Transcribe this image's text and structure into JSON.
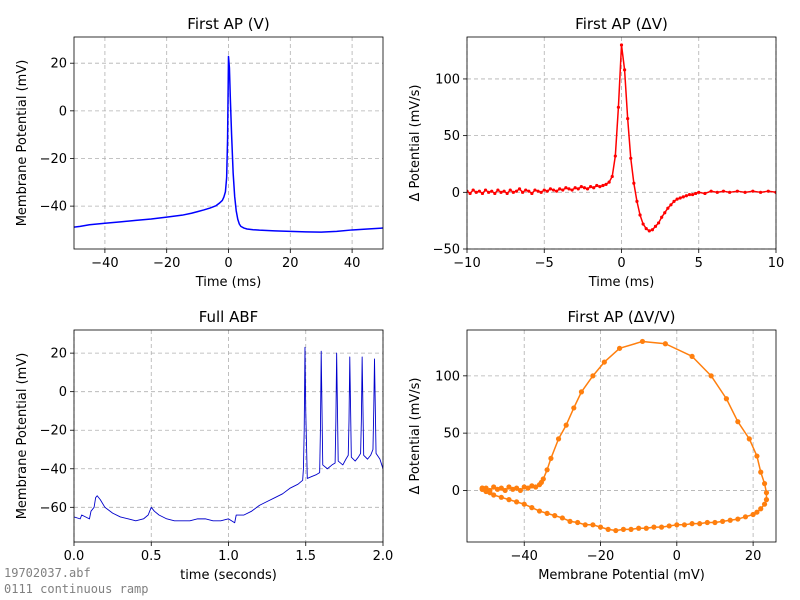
{
  "footer": {
    "filename": "19702037.abf",
    "protocol": "0111 continuous ramp"
  },
  "colors": {
    "blue": "#0000ff",
    "darkblue": "#0000cc",
    "red": "#ff0000",
    "orange": "#ff7f0e",
    "grid": "#b0b0b0"
  },
  "chart_data": [
    {
      "id": "first-ap-v",
      "type": "line",
      "title": "First AP (V)",
      "xlabel": "Time (ms)",
      "ylabel": "Membrane Potential (mV)",
      "xlim": [
        -50,
        50
      ],
      "ylim": [
        -58,
        31
      ],
      "xticks": [
        -40,
        -20,
        0,
        20,
        40
      ],
      "yticks": [
        -40,
        -20,
        0,
        20
      ],
      "grid": true,
      "series": [
        {
          "color": "#0000ff",
          "markers": false,
          "x": [
            -50,
            -48,
            -45,
            -40,
            -35,
            -30,
            -25,
            -20,
            -15,
            -12,
            -10,
            -8,
            -6,
            -4,
            -3,
            -2,
            -1.5,
            -1,
            -0.6,
            -0.3,
            0,
            0.3,
            0.6,
            1,
            1.5,
            2,
            2.5,
            3,
            3.5,
            4,
            5,
            6,
            8,
            10,
            15,
            20,
            25,
            30,
            35,
            40,
            45,
            50
          ],
          "y": [
            -48.8,
            -48.5,
            -47.8,
            -47.2,
            -46.6,
            -46.0,
            -45.4,
            -44.6,
            -43.8,
            -43.0,
            -42.3,
            -41.6,
            -40.8,
            -39.8,
            -38.8,
            -37.6,
            -36.2,
            -34.0,
            -28,
            -12,
            22.8,
            18,
            5,
            -10,
            -26,
            -36,
            -42,
            -45.5,
            -47.5,
            -48.5,
            -49.2,
            -49.6,
            -49.9,
            -50.1,
            -50.4,
            -50.6,
            -50.8,
            -50.9,
            -50.6,
            -50.0,
            -49.6,
            -49.2
          ]
        }
      ]
    },
    {
      "id": "first-ap-dv",
      "type": "line",
      "title": "First AP (ΔV)",
      "xlabel": "Time (ms)",
      "ylabel": "Δ Potential (mV/s)",
      "xlim": [
        -10,
        10
      ],
      "ylim": [
        -50,
        137
      ],
      "xticks": [
        -10,
        -5,
        0,
        5,
        10
      ],
      "yticks": [
        -50,
        0,
        50,
        100
      ],
      "grid": true,
      "series": [
        {
          "color": "#ff0000",
          "markers": true,
          "x": [
            -10,
            -9.8,
            -9.6,
            -9.4,
            -9.2,
            -9.0,
            -8.8,
            -8.6,
            -8.4,
            -8.2,
            -8.0,
            -7.8,
            -7.6,
            -7.4,
            -7.2,
            -7.0,
            -6.8,
            -6.6,
            -6.4,
            -6.2,
            -6.0,
            -5.8,
            -5.6,
            -5.4,
            -5.2,
            -5.0,
            -4.8,
            -4.6,
            -4.4,
            -4.2,
            -4.0,
            -3.8,
            -3.6,
            -3.4,
            -3.2,
            -3.0,
            -2.8,
            -2.6,
            -2.4,
            -2.2,
            -2.0,
            -1.8,
            -1.6,
            -1.4,
            -1.2,
            -1.0,
            -0.8,
            -0.6,
            -0.4,
            -0.2,
            0.0,
            0.2,
            0.4,
            0.6,
            0.8,
            1.0,
            1.2,
            1.4,
            1.6,
            1.8,
            2.0,
            2.2,
            2.4,
            2.6,
            2.8,
            3.0,
            3.2,
            3.4,
            3.6,
            3.8,
            4.0,
            4.2,
            4.4,
            4.6,
            4.8,
            5.0,
            5.4,
            5.8,
            6.2,
            6.6,
            7.0,
            7.5,
            8.0,
            8.5,
            9.0,
            9.5,
            10.0
          ],
          "y": [
            1,
            -1,
            2,
            0,
            1,
            -1,
            2,
            0,
            1,
            -1,
            2,
            0,
            1,
            -1,
            2,
            0,
            1,
            3,
            0,
            2,
            1,
            -1,
            2,
            1,
            0,
            2,
            1,
            3,
            2,
            1,
            3,
            2,
            4,
            3,
            2,
            4,
            3,
            5,
            4,
            3,
            5,
            4,
            6,
            5,
            6,
            7,
            9,
            14,
            32,
            75,
            130,
            108,
            65,
            30,
            8,
            -8,
            -20,
            -28,
            -32,
            -34,
            -33,
            -30,
            -27,
            -22,
            -18,
            -14,
            -11,
            -8,
            -6,
            -5,
            -4,
            -3,
            -2,
            -2,
            -1,
            0,
            -1,
            1,
            0,
            1,
            0,
            1,
            0,
            1,
            0,
            1,
            0
          ]
        }
      ]
    },
    {
      "id": "full-abf",
      "type": "line",
      "title": "Full ABF",
      "xlabel": "time (seconds)",
      "ylabel": "Membrane Potential (mV)",
      "xlim": [
        0,
        2.0
      ],
      "ylim": [
        -78,
        32
      ],
      "xticks": [
        0.0,
        0.5,
        1.0,
        1.5,
        2.0
      ],
      "yticks": [
        -60,
        -40,
        -20,
        0,
        20
      ],
      "grid": true,
      "series": [
        {
          "color": "#0000cc",
          "markers": false,
          "x": [
            0.0,
            0.04,
            0.05,
            0.1,
            0.11,
            0.13,
            0.14,
            0.15,
            0.17,
            0.2,
            0.25,
            0.3,
            0.35,
            0.4,
            0.45,
            0.48,
            0.49,
            0.5,
            0.52,
            0.55,
            0.6,
            0.65,
            0.7,
            0.75,
            0.8,
            0.85,
            0.9,
            0.95,
            1.0,
            1.04,
            1.05,
            1.1,
            1.15,
            1.2,
            1.25,
            1.3,
            1.35,
            1.4,
            1.45,
            1.48,
            1.485,
            1.49,
            1.495,
            1.5,
            1.51,
            1.54,
            1.57,
            1.59,
            1.595,
            1.6,
            1.61,
            1.64,
            1.67,
            1.69,
            1.695,
            1.7,
            1.71,
            1.74,
            1.76,
            1.775,
            1.78,
            1.785,
            1.795,
            1.82,
            1.84,
            1.855,
            1.86,
            1.865,
            1.875,
            1.9,
            1.92,
            1.935,
            1.94,
            1.945,
            1.955,
            1.98,
            2.0
          ],
          "y": [
            -65,
            -66,
            -64,
            -66,
            -62,
            -60,
            -55,
            -54,
            -56,
            -60,
            -63,
            -65,
            -66,
            -67,
            -66,
            -64,
            -62,
            -60,
            -62,
            -64,
            -66,
            -67,
            -67,
            -67,
            -66,
            -66,
            -67,
            -67,
            -66,
            -68,
            -64,
            -64,
            -62,
            -59,
            -57,
            -55,
            -53,
            -50,
            -48,
            -46,
            -40,
            -20,
            23,
            -10,
            -45,
            -44,
            -43,
            -42,
            -20,
            21,
            -38,
            -40,
            -38,
            -37,
            -15,
            20,
            -36,
            -38,
            -35,
            -33,
            -15,
            18,
            -34,
            -36,
            -34,
            -32,
            -15,
            18,
            -33,
            -35,
            -33,
            -30,
            -10,
            17,
            -32,
            -35,
            -40
          ]
        }
      ]
    },
    {
      "id": "first-ap-phase",
      "type": "line",
      "title": "First AP (ΔV/V)",
      "xlabel": "Membrane Potential (mV)",
      "ylabel": "Δ Potential (mV/s)",
      "xlim": [
        -55,
        26
      ],
      "ylim": [
        -45,
        140
      ],
      "xticks": [
        -40,
        -20,
        0,
        20
      ],
      "yticks": [
        0,
        50,
        100
      ],
      "grid": true,
      "series": [
        {
          "color": "#ff7f0e",
          "markers": true,
          "x": [
            -51,
            -50,
            -49,
            -48,
            -47,
            -46,
            -45,
            -44,
            -43,
            -42,
            -41,
            -40,
            -39,
            -38,
            -37,
            -36,
            -35.5,
            -35,
            -34,
            -33,
            -31,
            -29,
            -27,
            -25,
            -22,
            -19,
            -15,
            -9,
            -3,
            4,
            9,
            13,
            16,
            19,
            21,
            22,
            23,
            23.5,
            23.5,
            23,
            22,
            21,
            20,
            18,
            16,
            14,
            12,
            10,
            8,
            6,
            4,
            2,
            0,
            -2,
            -4,
            -6,
            -8,
            -10,
            -12,
            -14,
            -16,
            -18,
            -20,
            -22,
            -24,
            -26,
            -28,
            -30,
            -32,
            -34,
            -36,
            -38,
            -40,
            -42,
            -44,
            -46,
            -48,
            -49,
            -50,
            -51,
            -50,
            -51,
            -50,
            -51
          ],
          "y": [
            1,
            2,
            0,
            3,
            1,
            2,
            0,
            3,
            1,
            2,
            0,
            3,
            2,
            4,
            3,
            5,
            7,
            10,
            18,
            28,
            45,
            57,
            72,
            86,
            100,
            112,
            124,
            130,
            128,
            117,
            100,
            80,
            60,
            45,
            30,
            16,
            6,
            -2,
            -8,
            -12,
            -16,
            -19,
            -21,
            -23,
            -25,
            -26,
            -27,
            -28,
            -28,
            -29,
            -29,
            -30,
            -30,
            -31,
            -32,
            -32,
            -33,
            -33,
            -34,
            -34,
            -35,
            -34,
            -32,
            -30,
            -30,
            -28,
            -27,
            -24,
            -22,
            -20,
            -18,
            -15,
            -12,
            -10,
            -8,
            -6,
            -4,
            -2,
            0,
            2,
            -1,
            1,
            0,
            2
          ]
        }
      ]
    }
  ]
}
